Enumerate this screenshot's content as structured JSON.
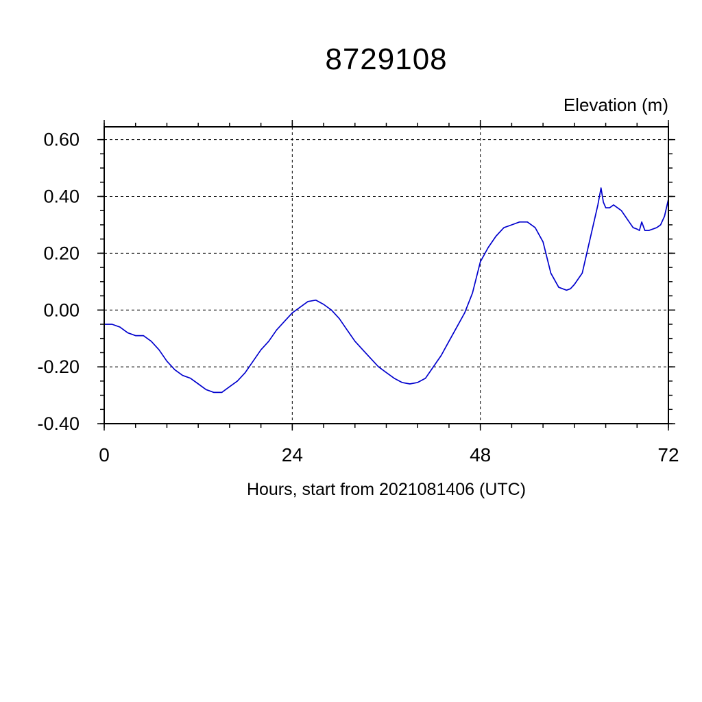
{
  "chart_data": {
    "type": "line",
    "title": "8729108",
    "ylabel": "Elevation (m)",
    "xlabel": "Hours, start from 2021081406 (UTC)",
    "xlim": [
      0,
      72
    ],
    "ylim": [
      -0.4,
      0.645
    ],
    "xticks": [
      0,
      24,
      48,
      72
    ],
    "xtick_labels": [
      "0",
      "24",
      "48",
      "72"
    ],
    "x_minor_step": 4,
    "yticks": [
      -0.4,
      -0.2,
      0.0,
      0.2,
      0.4,
      0.6
    ],
    "ytick_labels": [
      "-0.40",
      "-0.20",
      "0.00",
      "0.20",
      "0.40",
      "0.60"
    ],
    "y_minor_step": 0.05,
    "grid": "dashed",
    "legend": "none",
    "line_color": "#0000cd",
    "series": [
      {
        "name": "elevation",
        "x": [
          0,
          1,
          2,
          3,
          4,
          5,
          6,
          7,
          8,
          9,
          10,
          11,
          12,
          13,
          14,
          15,
          16,
          17,
          18,
          19,
          20,
          21,
          22,
          23,
          24,
          25,
          26,
          27,
          28,
          29,
          30,
          31,
          32,
          33,
          34,
          35,
          36,
          37,
          38,
          39,
          40,
          41,
          42,
          43,
          44,
          45,
          46,
          47,
          48,
          49,
          50,
          51,
          52,
          53,
          54,
          55,
          56,
          57,
          58,
          59,
          59.5,
          60,
          61,
          62,
          63,
          63.4,
          63.7,
          64,
          64.5,
          65,
          65.5,
          66,
          66.5,
          67,
          67.5,
          68,
          68.3,
          68.6,
          69,
          69.5,
          70,
          70.5,
          71,
          71.5,
          72
        ],
        "y": [
          -0.05,
          -0.05,
          -0.06,
          -0.08,
          -0.09,
          -0.09,
          -0.11,
          -0.14,
          -0.18,
          -0.21,
          -0.23,
          -0.24,
          -0.26,
          -0.28,
          -0.29,
          -0.29,
          -0.27,
          -0.25,
          -0.22,
          -0.18,
          -0.14,
          -0.11,
          -0.07,
          -0.04,
          -0.01,
          0.01,
          0.03,
          0.035,
          0.02,
          0.0,
          -0.03,
          -0.07,
          -0.11,
          -0.14,
          -0.17,
          -0.2,
          -0.22,
          -0.24,
          -0.255,
          -0.26,
          -0.255,
          -0.24,
          -0.2,
          -0.16,
          -0.11,
          -0.06,
          -0.01,
          0.06,
          0.17,
          0.22,
          0.26,
          0.29,
          0.3,
          0.31,
          0.31,
          0.29,
          0.24,
          0.13,
          0.08,
          0.07,
          0.075,
          0.09,
          0.13,
          0.25,
          0.37,
          0.43,
          0.38,
          0.36,
          0.36,
          0.37,
          0.36,
          0.35,
          0.33,
          0.31,
          0.29,
          0.285,
          0.28,
          0.31,
          0.28,
          0.28,
          0.285,
          0.29,
          0.3,
          0.33,
          0.39
        ]
      }
    ]
  }
}
